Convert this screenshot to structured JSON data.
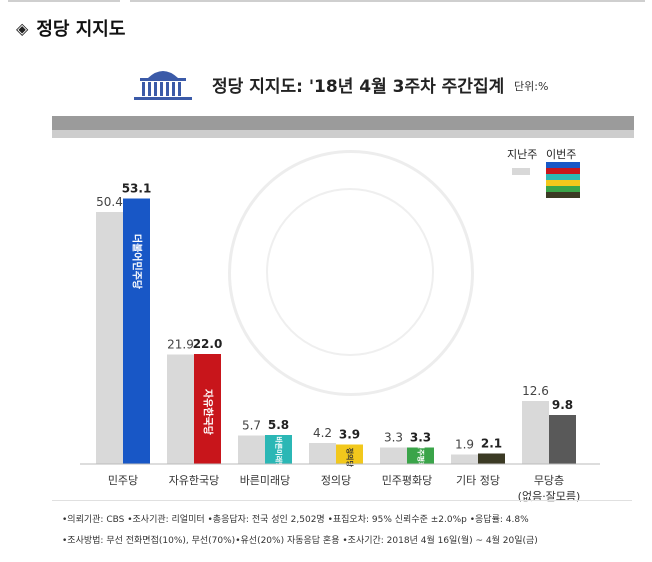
{
  "header": {
    "title": "정당 지지도",
    "bullet": "◈"
  },
  "chart_data": {
    "type": "bar",
    "title": "정당 지지도: '18년 4월 3주차 주간집계",
    "unit": "단위:%",
    "categories": [
      "민주당",
      "자유한국당",
      "바른미래당",
      "정의당",
      "민주평화당",
      "기타 정당",
      "무당층\n(없음·잘모름)"
    ],
    "series": [
      {
        "name": "지난주",
        "values": [
          50.4,
          21.9,
          5.7,
          4.2,
          3.3,
          1.9,
          12.6
        ]
      },
      {
        "name": "이번주",
        "values": [
          53.1,
          22.0,
          5.8,
          3.9,
          3.3,
          2.1,
          9.8
        ]
      }
    ],
    "bar_labels": {
      "last": [
        "50.4",
        "21.9",
        "5.7",
        "4.2",
        "3.3",
        "1.9",
        "12.6"
      ],
      "this": [
        "53.1",
        "22.0",
        "5.8",
        "3.9",
        "3.3",
        "2.1",
        "9.8"
      ]
    },
    "colors": {
      "last": "#d9d9d9",
      "this": [
        "#1857c6",
        "#c8151b",
        "#2bb7b5",
        "#f2c81c",
        "#3aa449",
        "#3b3a24",
        "#595959"
      ],
      "legend_stripes": [
        "#1857c6",
        "#c8151b",
        "#2bb7b5",
        "#f2c81c",
        "#3aa449",
        "#3b3a24"
      ]
    },
    "ylim": [
      0,
      60
    ],
    "logo_texts": [
      "더불어민주당",
      "자유한국당",
      "바른미래당",
      "정의당",
      "민주평화당"
    ]
  },
  "legend": {
    "last_label": "지난주",
    "this_label": "이번주"
  },
  "footnotes": [
    "•의뢰기관: CBS •조사기관: 리얼미터 •총응답자: 전국 성인 2,502명 •표집오차: 95% 신뢰수준 ±2.0%p •응답률: 4.8%",
    "•조사방법: 무선 전화면접(10%), 무선(70%)•유선(20%) 자동응답 혼용 •조사기간: 2018년 4월 16일(월) ~ 4월 20일(금)"
  ]
}
